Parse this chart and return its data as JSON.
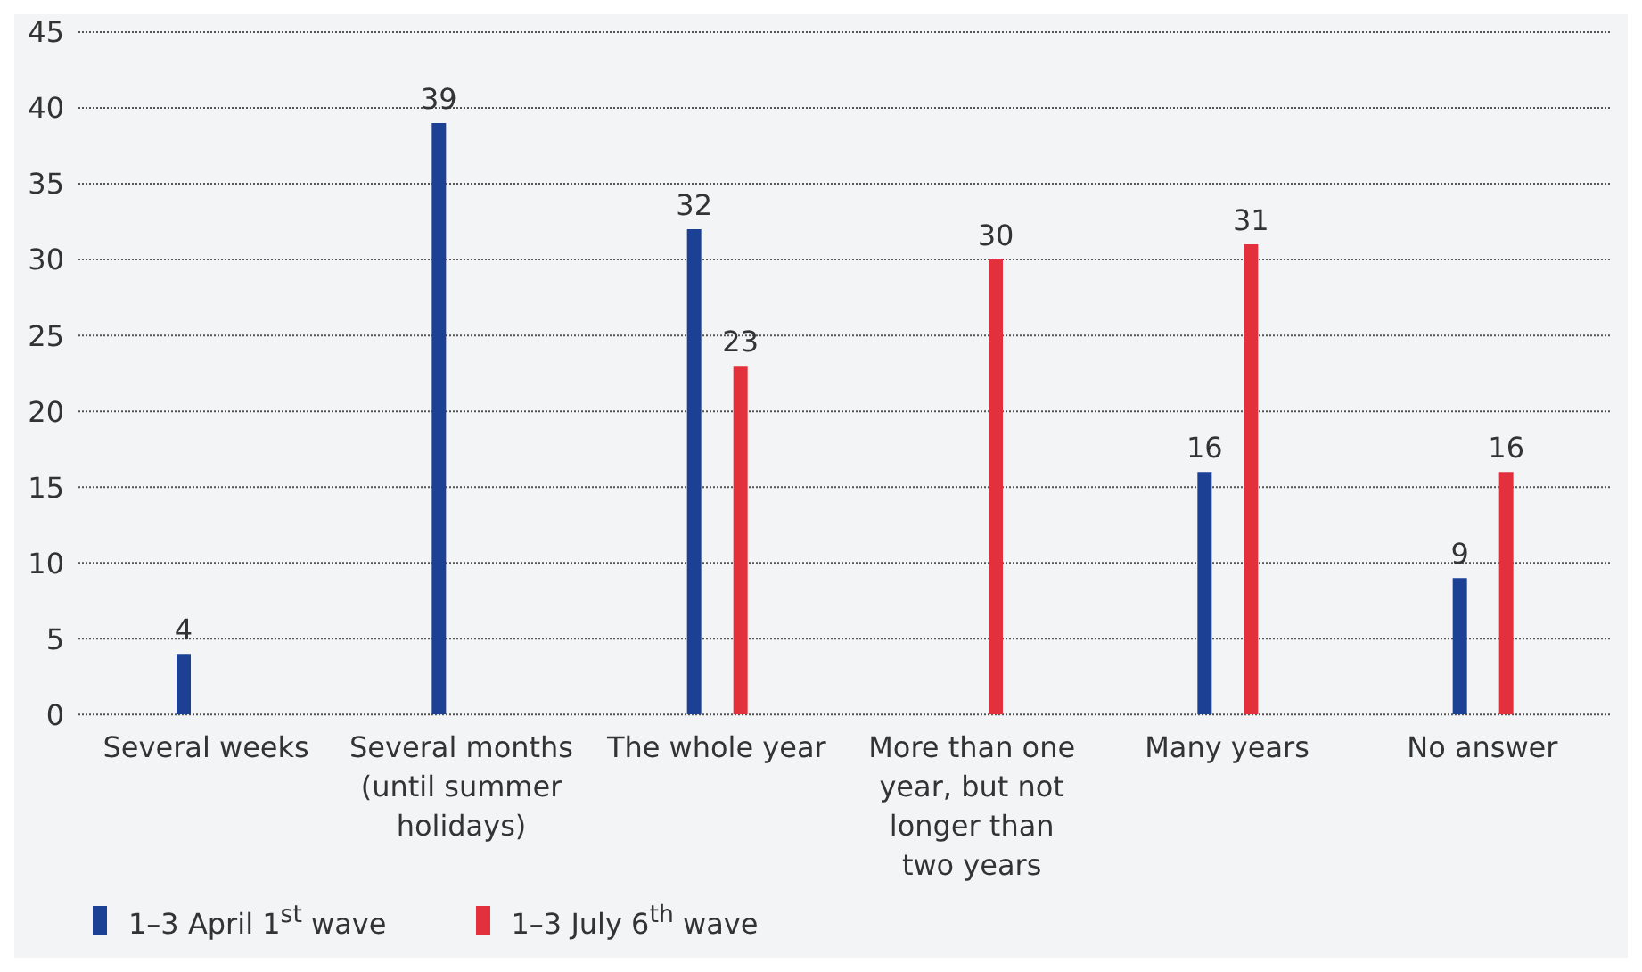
{
  "chart_data": {
    "type": "bar",
    "categories": [
      "Several weeks",
      "Several months (until summer holidays)",
      "The whole year",
      "More than one year, but not longer than two years",
      "Many years",
      "No answer"
    ],
    "series": [
      {
        "name": "1–3 April 1$^{st}$ wave",
        "color": "#1c4094",
        "values": [
          4,
          39,
          32,
          null,
          16,
          9
        ]
      },
      {
        "name": "1–3 July 6$^{th}$ wave",
        "color": "#e2313d",
        "values": [
          null,
          null,
          23,
          30,
          31,
          16
        ]
      }
    ],
    "ylim": [
      0,
      45
    ],
    "yticks": [
      0,
      5,
      10,
      15,
      20,
      25,
      30,
      35,
      40,
      45
    ],
    "grid": "y",
    "legend": "bottom left",
    "data_labels": true
  }
}
